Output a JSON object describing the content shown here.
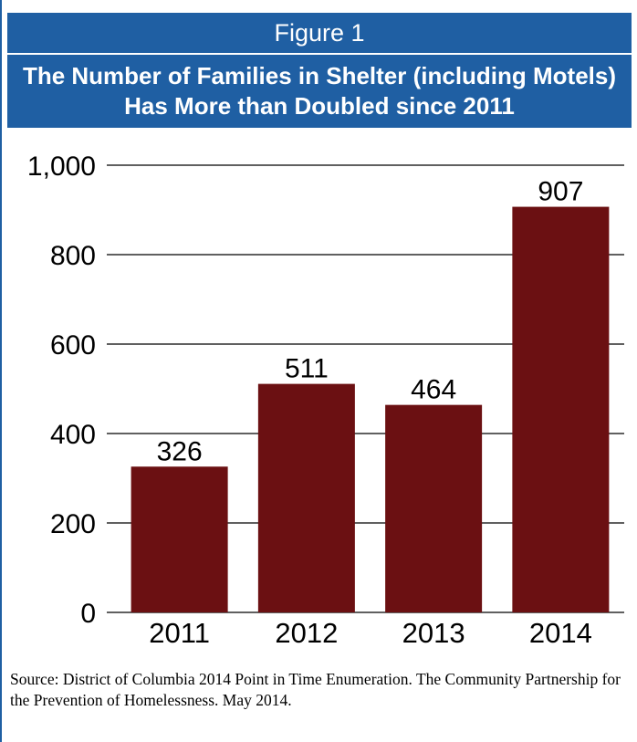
{
  "header": {
    "figure_label": "Figure 1",
    "title": "The Number of Families in Shelter (including Motels) Has More than Doubled since 2011"
  },
  "colors": {
    "header_bg": "#1f5fa3",
    "bar": "#6b1012",
    "grid": "#000000"
  },
  "chart_data": {
    "type": "bar",
    "title": "The Number of Families in Shelter (including Motels) Has More than Doubled since 2011",
    "xlabel": "",
    "ylabel": "",
    "categories": [
      "2011",
      "2012",
      "2013",
      "2014"
    ],
    "values": [
      326,
      511,
      464,
      907
    ],
    "data_labels": [
      "326",
      "511",
      "464",
      "907"
    ],
    "ylim": [
      0,
      1000
    ],
    "yticks": [
      0,
      200,
      400,
      600,
      800,
      1000
    ],
    "ytick_labels": [
      "0",
      "200",
      "400",
      "600",
      "800",
      "1,000"
    ],
    "grid": true,
    "legend": "none"
  },
  "source": "Source:  District of Columbia 2014 Point in Time Enumeration. The Community Partnership for the Prevention of Homelessness. May 2014."
}
